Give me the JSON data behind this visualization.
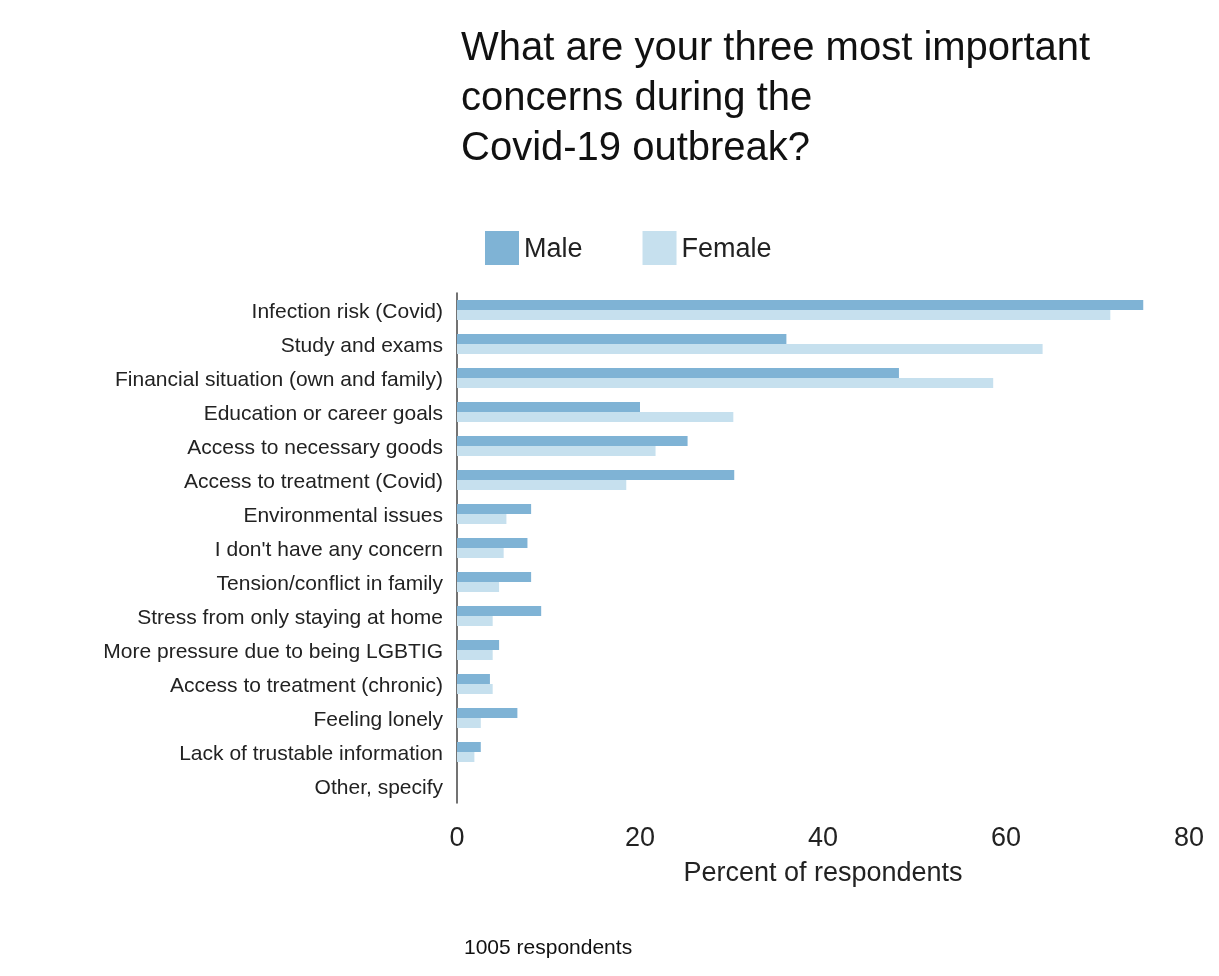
{
  "chart_data": {
    "type": "bar",
    "orientation": "horizontal",
    "title": "What are your three most important\nconcerns during the\nCovid-19 outbreak?",
    "xlabel": "Percent of respondents",
    "annotations": [
      "1005 respondents"
    ],
    "categories": [
      "Infection risk (Covid)",
      "Study and exams",
      "Financial situation (own and family)",
      "Education or career goals",
      "Access to necessary goods",
      "Access to treatment (Covid)",
      "Environmental issues",
      "I don't have any concern",
      "Tension/conflict in family",
      "Stress from only staying at home",
      "More pressure due to being LGBTIG",
      "Access to treatment (chronic)",
      "Feeling lonely",
      "Lack of trustable information",
      "Other, specify"
    ],
    "series": [
      {
        "name": "Male",
        "color": "#7fb3d5",
        "values": [
          75.0,
          36.0,
          48.3,
          20.0,
          25.2,
          30.3,
          8.1,
          7.7,
          8.1,
          9.2,
          4.6,
          3.6,
          6.6,
          2.6,
          0
        ]
      },
      {
        "name": "Female",
        "color": "#c6e0ee",
        "values": [
          71.4,
          64.0,
          58.6,
          30.2,
          21.7,
          18.5,
          5.4,
          5.1,
          4.6,
          3.9,
          3.9,
          3.9,
          2.6,
          1.9,
          0
        ]
      }
    ],
    "xlim": [
      0,
      80
    ],
    "xticks": [
      0,
      20,
      40,
      60,
      80
    ],
    "grid": false,
    "legend": "top left"
  }
}
